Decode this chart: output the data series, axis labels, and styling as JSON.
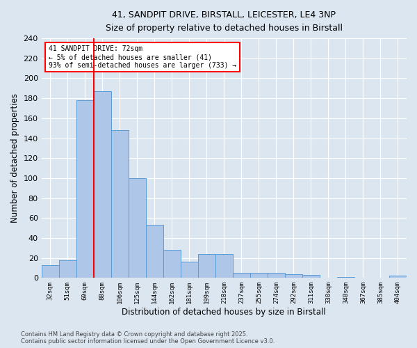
{
  "title_line1": "41, SANDPIT DRIVE, BIRSTALL, LEICESTER, LE4 3NP",
  "title_line2": "Size of property relative to detached houses in Birstall",
  "xlabel": "Distribution of detached houses by size in Birstall",
  "ylabel": "Number of detached properties",
  "categories": [
    "32sqm",
    "51sqm",
    "69sqm",
    "88sqm",
    "106sqm",
    "125sqm",
    "144sqm",
    "162sqm",
    "181sqm",
    "199sqm",
    "218sqm",
    "237sqm",
    "255sqm",
    "274sqm",
    "292sqm",
    "311sqm",
    "330sqm",
    "348sqm",
    "367sqm",
    "385sqm",
    "404sqm"
  ],
  "values": [
    13,
    18,
    178,
    187,
    148,
    100,
    53,
    28,
    16,
    24,
    24,
    5,
    5,
    5,
    4,
    3,
    0,
    1,
    0,
    0,
    2
  ],
  "bar_color": "#aec6e8",
  "bar_edge_color": "#5b9bd5",
  "vline_x_index": 2,
  "vline_color": "red",
  "annotation_title": "41 SANDPIT DRIVE: 72sqm",
  "annotation_line1": "← 5% of detached houses are smaller (41)",
  "annotation_line2": "93% of semi-detached houses are larger (733) →",
  "annotation_box_color": "red",
  "ylim": [
    0,
    240
  ],
  "yticks": [
    0,
    20,
    40,
    60,
    80,
    100,
    120,
    140,
    160,
    180,
    200,
    220,
    240
  ],
  "footer_line1": "Contains HM Land Registry data © Crown copyright and database right 2025.",
  "footer_line2": "Contains public sector information licensed under the Open Government Licence v3.0.",
  "bg_color": "#dce6f0",
  "plot_bg_color": "#dce6f0"
}
